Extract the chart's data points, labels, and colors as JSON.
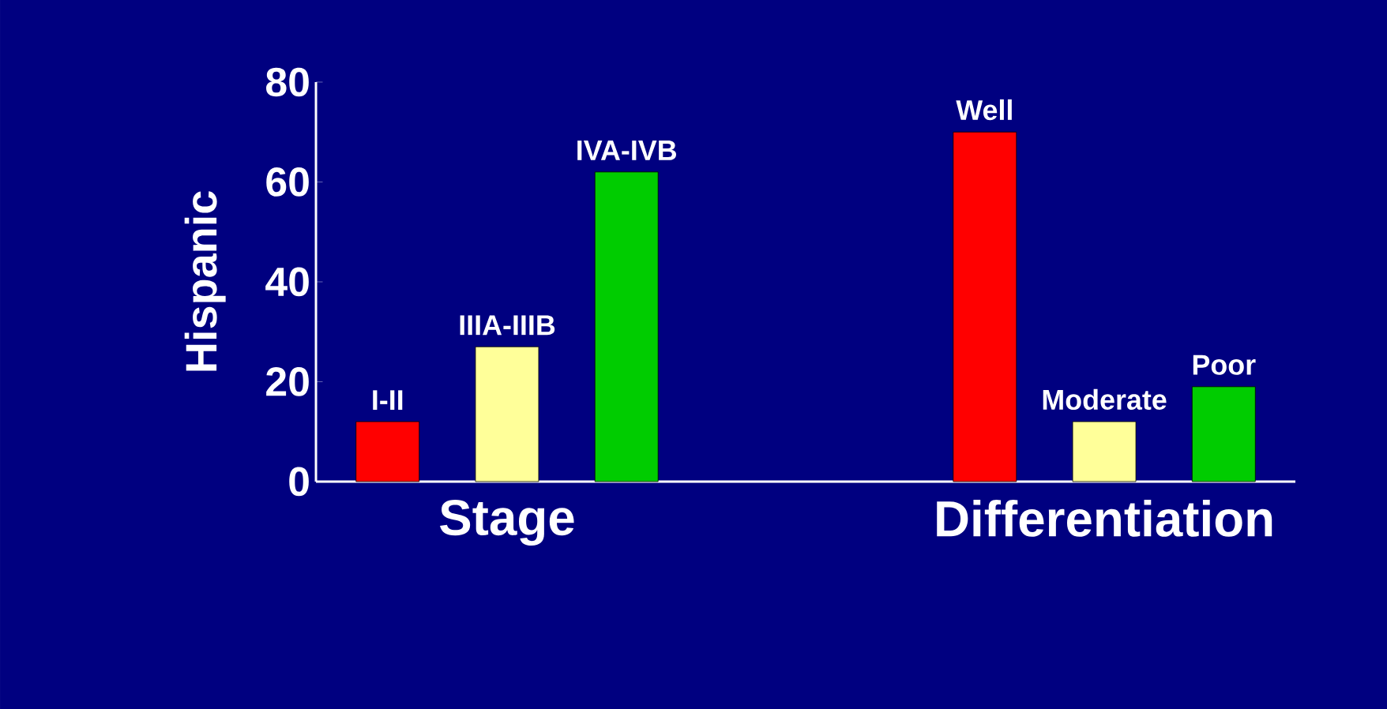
{
  "chart_data": {
    "type": "bar",
    "ylabel": "Hispanic",
    "categories": [
      "I-II",
      "IIIA-IIIB",
      "IVA-IVB",
      null,
      null,
      "Well",
      "Moderate",
      "Poor"
    ],
    "values": [
      12,
      27,
      62,
      null,
      null,
      70,
      12,
      19
    ],
    "colors": [
      "#ff0000",
      "#ffff99",
      "#00cc00",
      null,
      null,
      "#ff0000",
      "#ffff99",
      "#00cc00"
    ],
    "ylim": [
      0,
      80
    ],
    "yticks": [
      0,
      20,
      40,
      60,
      80
    ],
    "grid": false,
    "annotations": [
      "Stage",
      "Differentiation"
    ]
  }
}
